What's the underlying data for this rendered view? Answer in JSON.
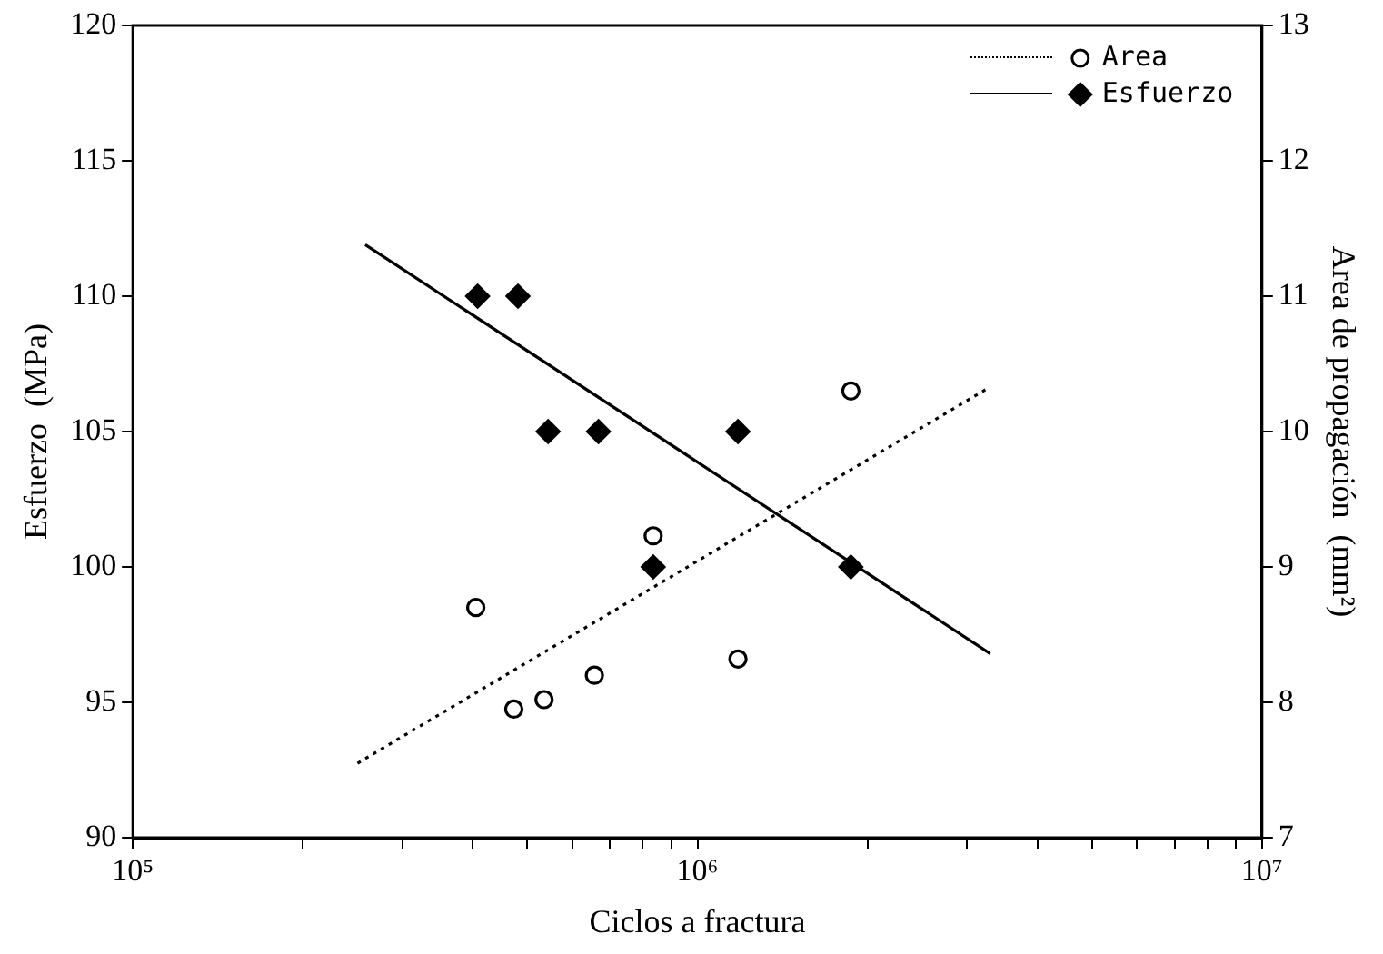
{
  "chart_data": {
    "type": "scatter",
    "xlabel": "Ciclos a fractura",
    "ylabel": "Esfuerzo  (MPa)",
    "y2label": "Area de propagación  (mm²)",
    "log": "x",
    "xlim": [
      100000,
      10000000
    ],
    "xticks": [
      {
        "value": 100000,
        "label": "10⁵"
      },
      {
        "value": 200000,
        "label": null
      },
      {
        "value": 300000,
        "label": null
      },
      {
        "value": 400000,
        "label": null
      },
      {
        "value": 500000,
        "label": null
      },
      {
        "value": 600000,
        "label": null
      },
      {
        "value": 700000,
        "label": null
      },
      {
        "value": 800000,
        "label": null
      },
      {
        "value": 900000,
        "label": null
      },
      {
        "value": 1000000,
        "label": "10⁶"
      },
      {
        "value": 2000000,
        "label": null
      },
      {
        "value": 3000000,
        "label": null
      },
      {
        "value": 4000000,
        "label": null
      },
      {
        "value": 5000000,
        "label": null
      },
      {
        "value": 6000000,
        "label": null
      },
      {
        "value": 7000000,
        "label": null
      },
      {
        "value": 8000000,
        "label": null
      },
      {
        "value": 9000000,
        "label": null
      },
      {
        "value": 10000000,
        "label": "10⁷"
      }
    ],
    "ylim": [
      90,
      120
    ],
    "yticks": [
      90,
      95,
      100,
      105,
      110,
      115,
      120
    ],
    "y2lim": [
      7,
      13
    ],
    "y2ticks": [
      7,
      8,
      9,
      10,
      11,
      12,
      13
    ],
    "grid": false,
    "legend": "top right",
    "series": [
      {
        "name": "Area",
        "color": "#000000",
        "marker": "circle",
        "axis": "y2",
        "x": [
          405000,
          473000,
          535000,
          657000,
          835000,
          1180000,
          1870000
        ],
        "values": [
          8.7,
          7.95,
          8.02,
          8.2,
          9.23,
          8.32,
          10.3
        ]
      },
      {
        "type": "line",
        "color": "#000000",
        "marker": "none",
        "line_style": "dotted",
        "axis": "y2",
        "x": [
          250000,
          3300000
        ],
        "values": [
          7.55,
          10.33
        ]
      },
      {
        "name": "Esfuerzo",
        "color": "#000000",
        "marker": "diamond",
        "x": [
          408000,
          481000,
          544000,
          668000,
          835000,
          1180000,
          1870000
        ],
        "values": [
          110,
          110,
          105,
          105,
          100,
          105,
          100
        ]
      },
      {
        "type": "line",
        "color": "#000000",
        "marker": "none",
        "line_style": "solid",
        "x": [
          258000,
          3300000
        ],
        "values": [
          111.9,
          96.8
        ]
      }
    ]
  }
}
